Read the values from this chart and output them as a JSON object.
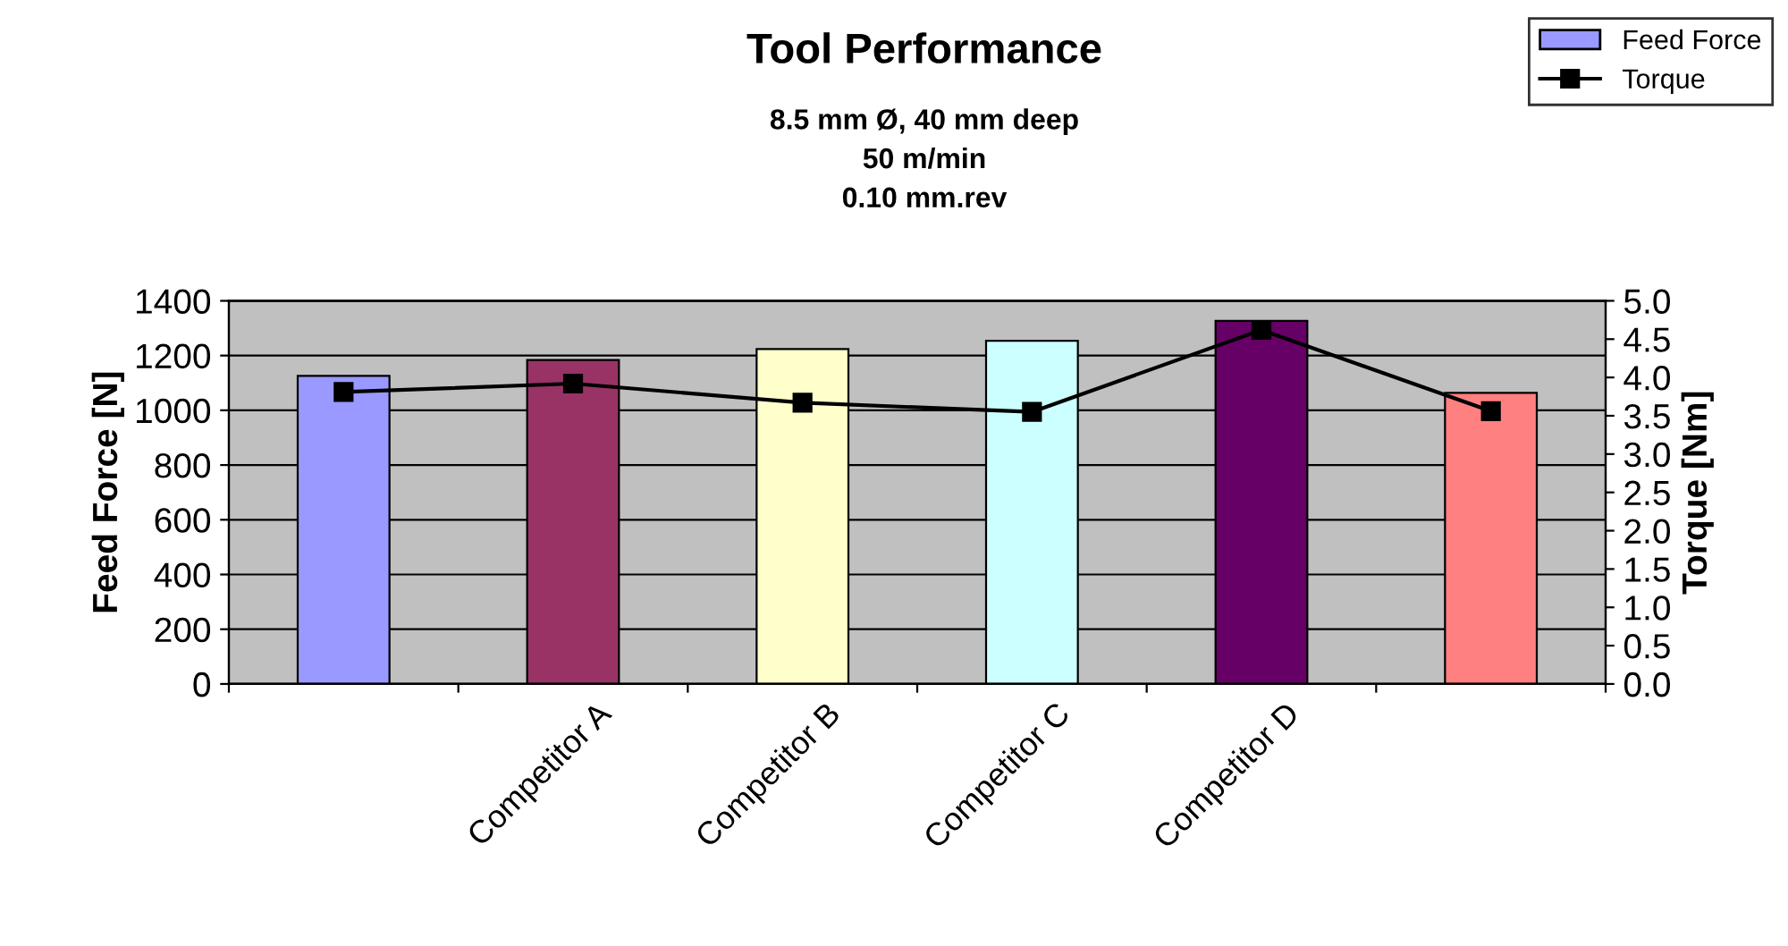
{
  "chart_data": {
    "type": "bar",
    "title": "Tool Performance",
    "subtitle": "8.5 mm Ø, 40 mm deep\n50 m/min\n0.10 mm.rev",
    "categories": [
      null,
      "Competitor A",
      "Competitor B",
      "Competitor C",
      "Competitor D",
      null
    ],
    "series": [
      {
        "name": "Feed Force",
        "color": "#9999ff",
        "colors": [
          "#9999ff",
          "#993366",
          "#ffffcc",
          "#ccffff",
          "#660066",
          "#ff8080"
        ],
        "values": [
          1126,
          1184,
          1224,
          1254,
          1327,
          1064
        ]
      },
      {
        "name": "Torque",
        "type": "line",
        "axis": "y2",
        "color": "#000000",
        "marker": "square",
        "line_style": "solid",
        "values": [
          3.81,
          3.92,
          3.67,
          3.55,
          4.62,
          3.56
        ]
      }
    ],
    "ylabel": "Feed Force [N]",
    "y2label": "Torque [Nm]",
    "ylim": [
      0,
      1400
    ],
    "yticks": [
      0,
      200,
      400,
      600,
      800,
      1000,
      1200,
      1400
    ],
    "y2lim": [
      0,
      5.0
    ],
    "y2ticks": [
      {
        "value": 0,
        "label": "0.0"
      },
      {
        "value": 0.5,
        "label": "0.5"
      },
      {
        "value": 1.0,
        "label": "1.0"
      },
      {
        "value": 1.5,
        "label": "1.5"
      },
      {
        "value": 2.0,
        "label": "2.0"
      },
      {
        "value": 2.5,
        "label": "2.5"
      },
      {
        "value": 3.0,
        "label": "3.0"
      },
      {
        "value": 3.5,
        "label": "3.5"
      },
      {
        "value": 4.0,
        "label": "4.0"
      },
      {
        "value": 4.5,
        "label": "4.5"
      },
      {
        "value": 5.0,
        "label": "5.0"
      }
    ],
    "grid": "y",
    "legend": "top right"
  }
}
